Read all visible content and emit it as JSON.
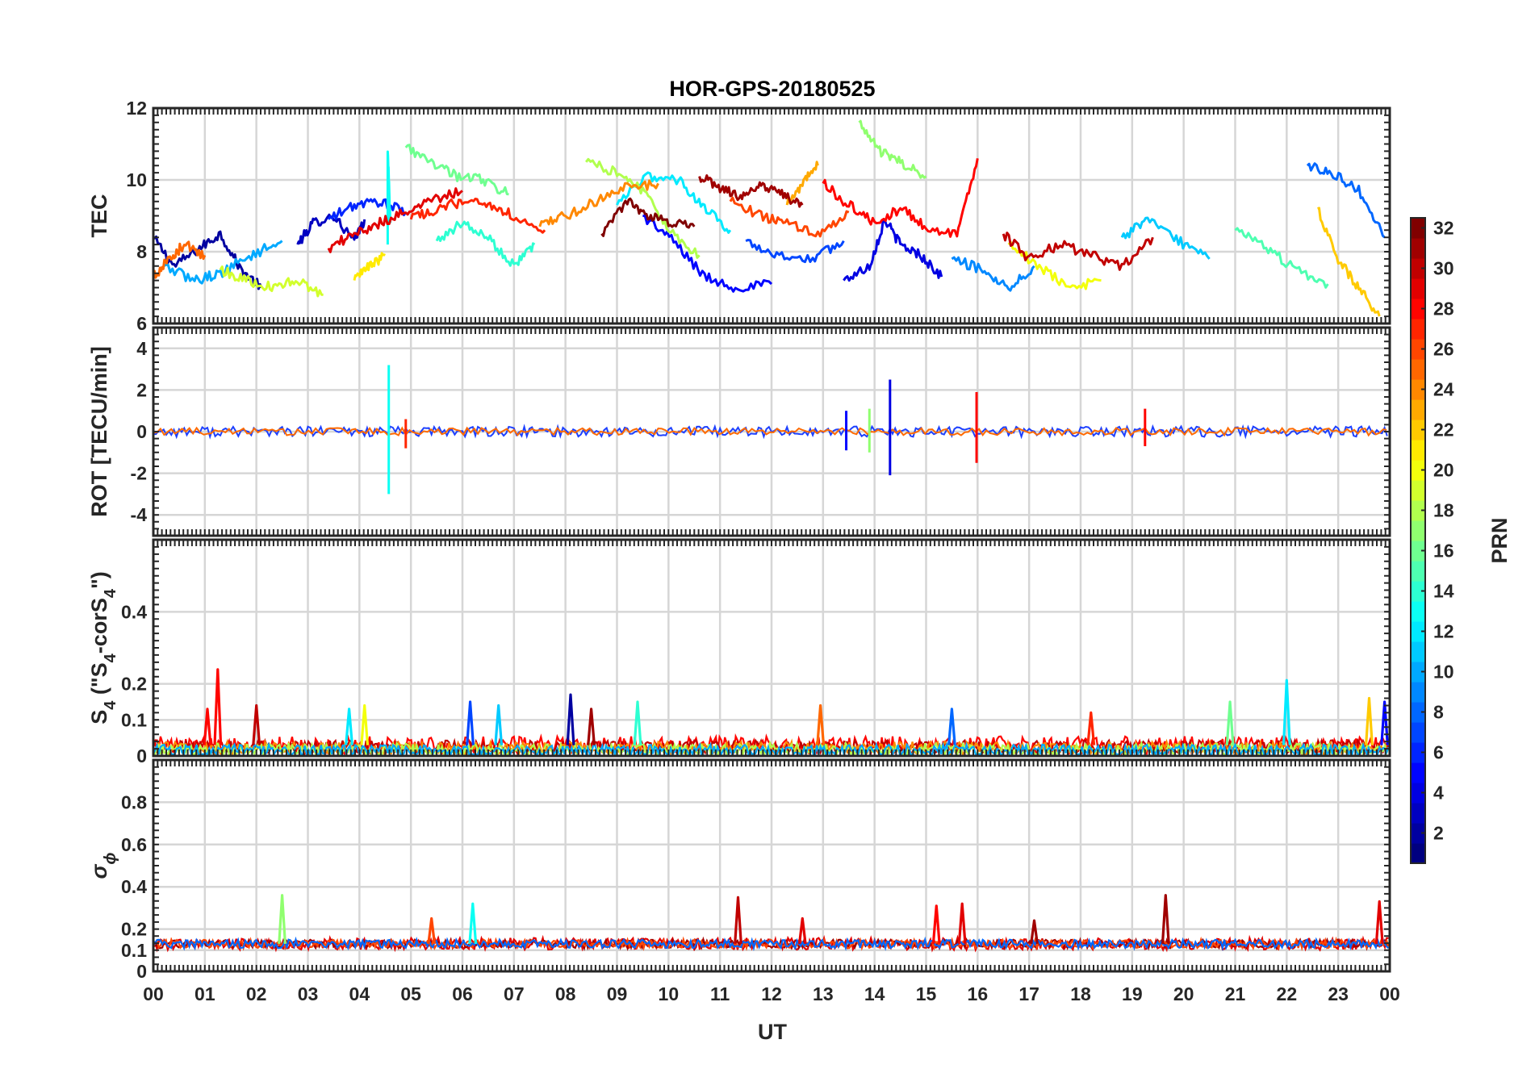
{
  "chart_data": {
    "type": "line",
    "title": "HOR-GPS-20180525",
    "xlabel": "UT",
    "x_ticks": [
      "00",
      "01",
      "02",
      "03",
      "04",
      "05",
      "06",
      "07",
      "08",
      "09",
      "10",
      "11",
      "12",
      "13",
      "14",
      "15",
      "16",
      "17",
      "18",
      "19",
      "20",
      "21",
      "22",
      "23",
      "00"
    ],
    "xlim": [
      0,
      24
    ],
    "grid": true,
    "colorbar": {
      "label": "PRN",
      "range": [
        1,
        32
      ],
      "ticks": [
        2,
        4,
        6,
        8,
        10,
        12,
        14,
        16,
        18,
        20,
        22,
        24,
        26,
        28,
        30,
        32
      ],
      "colormap": "jet",
      "placement": "right"
    },
    "panels": [
      {
        "id": "tec",
        "ylabel": "TEC",
        "ylim": [
          6,
          12
        ],
        "y_ticks": [
          6,
          8,
          10,
          12
        ],
        "tracks": [
          {
            "prn": 2,
            "x": [
              0.0,
              0.4,
              0.9,
              1.3,
              1.7,
              2.1
            ],
            "y": [
              8.4,
              7.6,
              8.1,
              8.5,
              7.5,
              7.0
            ]
          },
          {
            "prn": 3,
            "x": [
              2.8,
              3.1,
              3.5,
              3.9,
              4.1
            ],
            "y": [
              8.2,
              8.8,
              9.0,
              8.3,
              8.9
            ]
          },
          {
            "prn": 4,
            "x": [
              13.4,
              13.9,
              14.2,
              14.5,
              14.9,
              15.3
            ],
            "y": [
              7.2,
              7.6,
              8.9,
              8.2,
              7.9,
              7.3
            ]
          },
          {
            "prn": 5,
            "x": [
              9.5,
              10.1,
              10.7,
              11.3,
              12.0
            ],
            "y": [
              9.0,
              8.3,
              7.3,
              7.0,
              7.1
            ]
          },
          {
            "prn": 6,
            "x": [
              3.4,
              3.9,
              4.4,
              4.9
            ],
            "y": [
              8.9,
              9.3,
              9.4,
              9.1
            ]
          },
          {
            "prn": 7,
            "x": [
              11.5,
              12.1,
              12.8,
              13.4
            ],
            "y": [
              8.3,
              7.9,
              7.8,
              8.3
            ]
          },
          {
            "prn": 8,
            "x": [
              22.4,
              22.9,
              23.4,
              23.9
            ],
            "y": [
              10.4,
              10.2,
              9.7,
              8.4
            ]
          },
          {
            "prn": 9,
            "x": [
              15.5,
              16.1,
              16.6,
              17.1
            ],
            "y": [
              7.8,
              7.5,
              7.0,
              7.6
            ]
          },
          {
            "prn": 10,
            "x": [
              0.2,
              0.8,
              1.3,
              1.9,
              2.5
            ],
            "y": [
              7.6,
              7.2,
              7.4,
              7.9,
              8.3
            ]
          },
          {
            "prn": 11,
            "x": [
              18.8,
              19.3,
              19.9,
              20.5
            ],
            "y": [
              8.4,
              8.9,
              8.3,
              7.8
            ]
          },
          {
            "prn": 12,
            "x": [
              9.0,
              9.6,
              10.2,
              10.7,
              11.2
            ],
            "y": [
              9.3,
              10.1,
              10.0,
              9.2,
              8.6
            ]
          },
          {
            "prn": 13,
            "x": [
              4.55,
              4.55,
              4.6
            ],
            "y": [
              8.2,
              10.9,
              8.8
            ]
          },
          {
            "prn": 14,
            "x": [
              5.5,
              6.0,
              6.5,
              7.0,
              7.4
            ],
            "y": [
              8.3,
              8.8,
              8.4,
              7.6,
              8.2
            ]
          },
          {
            "prn": 15,
            "x": [
              21.0,
              21.6,
              22.2,
              22.8
            ],
            "y": [
              8.6,
              8.1,
              7.5,
              7.1
            ]
          },
          {
            "prn": 16,
            "x": [
              4.9,
              5.4,
              5.9,
              6.4,
              6.9
            ],
            "y": [
              10.9,
              10.5,
              10.1,
              10.0,
              9.6
            ]
          },
          {
            "prn": 17,
            "x": [
              13.7,
              14.1,
              14.5,
              15.0
            ],
            "y": [
              11.6,
              10.8,
              10.5,
              10.1
            ]
          },
          {
            "prn": 18,
            "x": [
              8.4,
              9.0,
              9.5,
              10.0,
              10.6
            ],
            "y": [
              10.5,
              10.2,
              9.7,
              8.6,
              7.9
            ]
          },
          {
            "prn": 19,
            "x": [
              1.3,
              1.8,
              2.3,
              2.8,
              3.3
            ],
            "y": [
              7.5,
              7.2,
              7.0,
              7.2,
              6.8
            ]
          },
          {
            "prn": 20,
            "x": [
              16.6,
              17.2,
              17.8,
              18.4
            ],
            "y": [
              8.2,
              7.6,
              7.0,
              7.2
            ]
          },
          {
            "prn": 21,
            "x": [
              3.9,
              4.2,
              4.5
            ],
            "y": [
              7.2,
              7.6,
              7.9
            ]
          },
          {
            "prn": 22,
            "x": [
              22.6,
              23.0,
              23.4,
              23.8
            ],
            "y": [
              9.2,
              7.8,
              7.0,
              6.2
            ]
          },
          {
            "prn": 23,
            "x": [
              12.3,
              12.6,
              12.9
            ],
            "y": [
              9.3,
              9.9,
              10.4
            ]
          },
          {
            "prn": 24,
            "x": [
              7.5,
              8.0,
              8.6,
              9.2,
              9.8
            ],
            "y": [
              8.7,
              9.0,
              9.4,
              9.8,
              9.9
            ]
          },
          {
            "prn": 25,
            "x": [
              0.0,
              0.3,
              0.6,
              1.0
            ],
            "y": [
              7.3,
              7.8,
              8.2,
              7.9
            ]
          },
          {
            "prn": 26,
            "x": [
              11.2,
              11.8,
              12.3,
              12.9,
              13.5
            ],
            "y": [
              9.4,
              9.0,
              8.8,
              8.5,
              9.1
            ]
          },
          {
            "prn": 27,
            "x": [
              5.0,
              5.5,
              6.0,
              6.5,
              7.0,
              7.6
            ],
            "y": [
              8.9,
              9.2,
              9.4,
              9.3,
              9.0,
              8.6
            ]
          },
          {
            "prn": 28,
            "x": [
              13.0,
              13.5,
              14.0,
              14.5,
              15.0,
              15.6,
              16.0
            ],
            "y": [
              9.9,
              9.3,
              8.8,
              9.2,
              8.7,
              8.5,
              10.6
            ]
          },
          {
            "prn": 29,
            "x": [
              3.4,
              3.9,
              4.4,
              4.9,
              5.4,
              6.0
            ],
            "y": [
              8.1,
              8.5,
              8.8,
              9.1,
              9.4,
              9.7
            ]
          },
          {
            "prn": 30,
            "x": [
              16.5,
              17.0,
              17.6,
              18.2,
              18.8,
              19.4
            ],
            "y": [
              8.5,
              7.8,
              8.2,
              7.9,
              7.6,
              8.4
            ]
          },
          {
            "prn": 31,
            "x": [
              10.6,
              11.0,
              11.4,
              11.8,
              12.2,
              12.6
            ],
            "y": [
              10.1,
              9.8,
              9.5,
              9.9,
              9.6,
              9.3
            ]
          },
          {
            "prn": 32,
            "x": [
              8.7,
              9.2,
              9.6,
              10.0,
              10.5
            ],
            "y": [
              8.5,
              9.4,
              9.0,
              8.8,
              8.7
            ]
          }
        ]
      },
      {
        "id": "rot",
        "ylabel": "ROT [TECU/min]",
        "ylim": [
          -5,
          5
        ],
        "y_ticks": [
          -4,
          -2,
          0,
          2,
          4
        ],
        "spikes": [
          {
            "prn": 13,
            "x": 4.57,
            "low": -3.0,
            "high": 3.2
          },
          {
            "prn": 4,
            "x": 14.3,
            "low": -2.1,
            "high": 2.5
          },
          {
            "prn": 28,
            "x": 15.98,
            "low": -1.5,
            "high": 1.9
          },
          {
            "prn": 5,
            "x": 13.45,
            "low": -0.9,
            "high": 1.0
          },
          {
            "prn": 17,
            "x": 13.9,
            "low": -1.0,
            "high": 1.1
          },
          {
            "prn": 28,
            "x": 19.25,
            "low": -0.7,
            "high": 1.1
          },
          {
            "prn": 27,
            "x": 4.9,
            "low": -0.8,
            "high": 0.6
          }
        ]
      },
      {
        "id": "s4",
        "ylabel": "S4 (\"S4-corS4\")",
        "ylim": [
          0,
          0.6
        ],
        "y_ticks": [
          0,
          0.1,
          0.2,
          0.4
        ],
        "baseline": 0.03,
        "spikes": [
          {
            "prn": 28,
            "x": 1.25,
            "peak": 0.24
          },
          {
            "prn": 28,
            "x": 1.05,
            "peak": 0.13
          },
          {
            "prn": 30,
            "x": 2.0,
            "peak": 0.14
          },
          {
            "prn": 20,
            "x": 4.1,
            "peak": 0.14
          },
          {
            "prn": 12,
            "x": 3.8,
            "peak": 0.13
          },
          {
            "prn": 7,
            "x": 6.15,
            "peak": 0.15
          },
          {
            "prn": 11,
            "x": 6.7,
            "peak": 0.14
          },
          {
            "prn": 2,
            "x": 8.1,
            "peak": 0.17
          },
          {
            "prn": 31,
            "x": 8.5,
            "peak": 0.13
          },
          {
            "prn": 14,
            "x": 9.4,
            "peak": 0.15
          },
          {
            "prn": 25,
            "x": 12.95,
            "peak": 0.14
          },
          {
            "prn": 8,
            "x": 15.5,
            "peak": 0.13
          },
          {
            "prn": 27,
            "x": 18.2,
            "peak": 0.12
          },
          {
            "prn": 16,
            "x": 20.9,
            "peak": 0.15
          },
          {
            "prn": 12,
            "x": 22.0,
            "peak": 0.21
          },
          {
            "prn": 22,
            "x": 23.6,
            "peak": 0.16
          },
          {
            "prn": 5,
            "x": 23.9,
            "peak": 0.15
          }
        ]
      },
      {
        "id": "sigma_phi",
        "ylabel": "σϕ",
        "ylim": [
          0,
          1
        ],
        "y_ticks": [
          0,
          0.1,
          0.2,
          0.4,
          0.6,
          0.8
        ],
        "baseline": 0.13,
        "spikes": [
          {
            "prn": 17,
            "x": 2.5,
            "peak": 0.36
          },
          {
            "prn": 13,
            "x": 6.2,
            "peak": 0.32
          },
          {
            "prn": 30,
            "x": 11.35,
            "peak": 0.35
          },
          {
            "prn": 28,
            "x": 15.2,
            "peak": 0.31
          },
          {
            "prn": 29,
            "x": 15.7,
            "peak": 0.32
          },
          {
            "prn": 31,
            "x": 19.65,
            "peak": 0.36
          },
          {
            "prn": 29,
            "x": 23.8,
            "peak": 0.33
          },
          {
            "prn": 26,
            "x": 5.4,
            "peak": 0.25
          },
          {
            "prn": 29,
            "x": 12.6,
            "peak": 0.25
          },
          {
            "prn": 31,
            "x": 17.1,
            "peak": 0.24
          }
        ]
      }
    ]
  }
}
